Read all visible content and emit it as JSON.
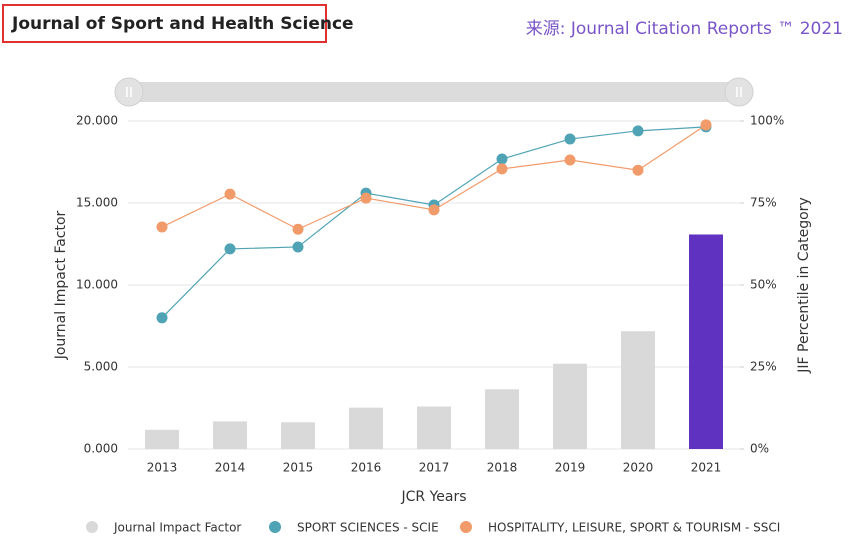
{
  "chart_data": {
    "type": "combo",
    "title": "Journal of Sport and Health Science",
    "source": "来源: Journal Citation Reports ™ 2021",
    "categories": [
      "2013",
      "2014",
      "2015",
      "2016",
      "2017",
      "2018",
      "2019",
      "2020",
      "2021"
    ],
    "x_label": "JCR Years",
    "y_label": "Journal Impact Factor",
    "y2_label": "JIF Percentile in Category",
    "series": [
      {
        "name": "Journal Impact Factor",
        "type": "bar",
        "color": "#d9d9d9",
        "bar_colors": [
          "#d9d9d9",
          "#d9d9d9",
          "#d9d9d9",
          "#d9d9d9",
          "#d9d9d9",
          "#d9d9d9",
          "#d9d9d9",
          "#d9d9d9",
          "#5f32bf"
        ],
        "values": [
          1.17,
          1.68,
          1.63,
          2.52,
          2.59,
          3.64,
          5.2,
          7.18,
          13.08
        ]
      },
      {
        "name": "SPORT SCIENCES - SCIE",
        "type": "line",
        "axis": "y2",
        "color": "#4fa3b5",
        "values": [
          40,
          61,
          61.6,
          78,
          74.4,
          88.4,
          94.5,
          97,
          98.2
        ]
      },
      {
        "name": "HOSPITALITY, LEISURE, SPORT & TOURISM - SSCI",
        "type": "line",
        "axis": "y2",
        "color": "#f29b6a",
        "values": [
          67.7,
          77.7,
          67,
          76.5,
          72.9,
          85.4,
          88.1,
          85,
          98.8
        ]
      }
    ],
    "ylim": [
      0,
      20
    ],
    "yticks": [
      {
        "value": 0,
        "label": "0.000"
      },
      {
        "value": 5,
        "label": "5.000"
      },
      {
        "value": 10,
        "label": "10.000"
      },
      {
        "value": 15,
        "label": "15.000"
      },
      {
        "value": 20,
        "label": "20.000"
      }
    ],
    "y2lim": [
      0,
      100
    ],
    "y2ticks": [
      {
        "value": 0,
        "label": "0%"
      },
      {
        "value": 25,
        "label": "25%"
      },
      {
        "value": 50,
        "label": "50%"
      },
      {
        "value": 75,
        "label": "75%"
      },
      {
        "value": 100,
        "label": "100%"
      }
    ],
    "grid": true
  }
}
